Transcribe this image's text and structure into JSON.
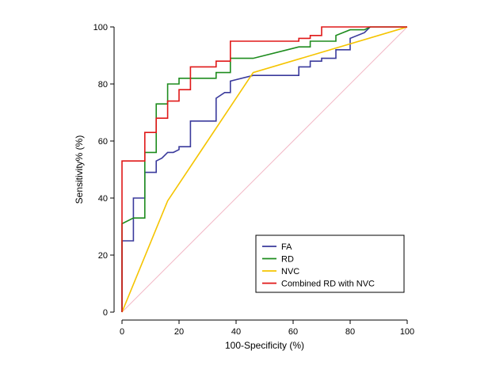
{
  "chart_data": {
    "type": "line",
    "title": "",
    "xlabel": "100-Specificity (%)",
    "ylabel": "Sensitivity% (%)",
    "xlim": [
      0,
      100
    ],
    "ylim": [
      0,
      100
    ],
    "x_ticks": [
      0,
      20,
      40,
      60,
      80,
      100
    ],
    "y_ticks": [
      0,
      20,
      40,
      60,
      80,
      100
    ],
    "legend_position": "bottom-right",
    "reference_line": {
      "x": [
        0,
        100
      ],
      "y": [
        0,
        100
      ],
      "color": "#f2b8c6"
    },
    "series": [
      {
        "name": "FA",
        "color": "#3a3a9c",
        "x": [
          0,
          0,
          4,
          4,
          8,
          8,
          12,
          12,
          14,
          16,
          18,
          20,
          20,
          24,
          24,
          33,
          33,
          36,
          38,
          38,
          46,
          58,
          62,
          62,
          66,
          66,
          70,
          70,
          75,
          75,
          80,
          80,
          85,
          87
        ],
        "y": [
          0,
          25,
          25,
          40,
          40,
          49,
          49,
          53,
          54,
          56,
          56,
          57,
          58,
          58,
          67,
          67,
          75,
          77,
          77,
          81,
          83,
          83,
          83,
          86,
          86,
          88,
          88,
          89,
          89,
          92,
          92,
          96,
          98,
          100
        ]
      },
      {
        "name": "RD",
        "color": "#1e8c1e",
        "x": [
          0,
          0,
          4,
          8,
          8,
          12,
          12,
          16,
          16,
          20,
          20,
          24,
          33,
          33,
          38,
          38,
          46,
          58,
          62,
          66,
          66,
          75,
          75,
          80,
          85,
          87,
          100
        ],
        "y": [
          0,
          31,
          33,
          33,
          56,
          56,
          73,
          73,
          80,
          80,
          82,
          82,
          82,
          84,
          84,
          89,
          89,
          92,
          93,
          93,
          95,
          95,
          97,
          99,
          99,
          100,
          100
        ]
      },
      {
        "name": "NVC",
        "color": "#f5c400",
        "x": [
          0,
          16,
          46,
          100
        ],
        "y": [
          0,
          39,
          84,
          100
        ]
      },
      {
        "name": "Combined RD with NVC",
        "color": "#e01818",
        "x": [
          0,
          0,
          8,
          8,
          12,
          12,
          16,
          16,
          20,
          20,
          24,
          24,
          33,
          33,
          38,
          38,
          58,
          62,
          62,
          66,
          66,
          70,
          70,
          75,
          75,
          100
        ],
        "y": [
          0,
          53,
          53,
          63,
          63,
          68,
          68,
          74,
          74,
          78,
          78,
          86,
          86,
          88,
          88,
          95,
          95,
          95,
          96,
          96,
          97,
          97,
          100,
          100,
          100,
          100
        ]
      }
    ]
  }
}
